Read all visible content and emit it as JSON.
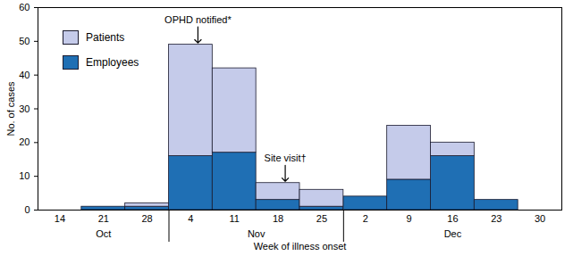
{
  "chart_data": {
    "type": "bar",
    "stacked": true,
    "categories": [
      "14",
      "21",
      "28",
      "4",
      "11",
      "18",
      "25",
      "2",
      "9",
      "16",
      "23",
      "30"
    ],
    "months": [
      "Oct",
      "Oct",
      "Oct",
      "Nov",
      "Nov",
      "Nov",
      "Nov",
      "Dec",
      "Dec",
      "Dec",
      "Dec",
      "Dec"
    ],
    "series": [
      {
        "name": "Employees",
        "color": "#1f6fb4",
        "values": [
          0,
          1,
          1,
          16,
          17,
          3,
          1,
          4,
          9,
          16,
          3,
          0
        ]
      },
      {
        "name": "Patients",
        "color": "#c5cbea",
        "values": [
          0,
          0,
          1,
          33,
          25,
          5,
          5,
          0,
          16,
          4,
          0,
          0
        ]
      }
    ],
    "xlabel": "Week of illness onset",
    "ylabel": "No. of cases",
    "ylim": [
      0,
      60
    ],
    "yticks": [
      0,
      10,
      20,
      30,
      40,
      50,
      60
    ],
    "grid": false,
    "legend": "upper left",
    "annotations": [
      {
        "text": "OPHD notified*",
        "category": "4"
      },
      {
        "text": "Site visit†",
        "category": "18"
      }
    ]
  }
}
